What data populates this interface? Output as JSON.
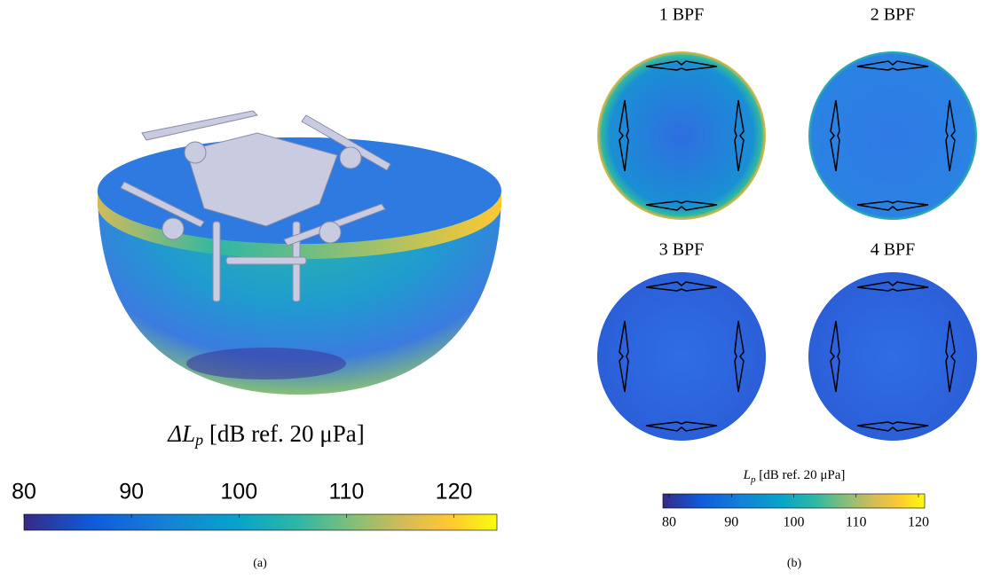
{
  "panel_a": {
    "label": {
      "symbol": "ΔL",
      "subscript": "p",
      "unit": "[dB ref. 20 μPa]"
    },
    "colorbar": {
      "lim": [
        80,
        124
      ],
      "ticks": [
        80,
        90,
        100,
        110,
        120
      ]
    },
    "caption": "(a)"
  },
  "panel_b": {
    "subplots": [
      "1 BPF",
      "2 BPF",
      "3 BPF",
      "4 BPF"
    ],
    "label": {
      "symbol": "L",
      "subscript": "p",
      "unit": "[dB ref. 20 μPa]"
    },
    "colorbar": {
      "lim": [
        79,
        121
      ],
      "ticks": [
        80,
        90,
        100,
        110,
        120
      ]
    },
    "caption": "(b)"
  }
}
